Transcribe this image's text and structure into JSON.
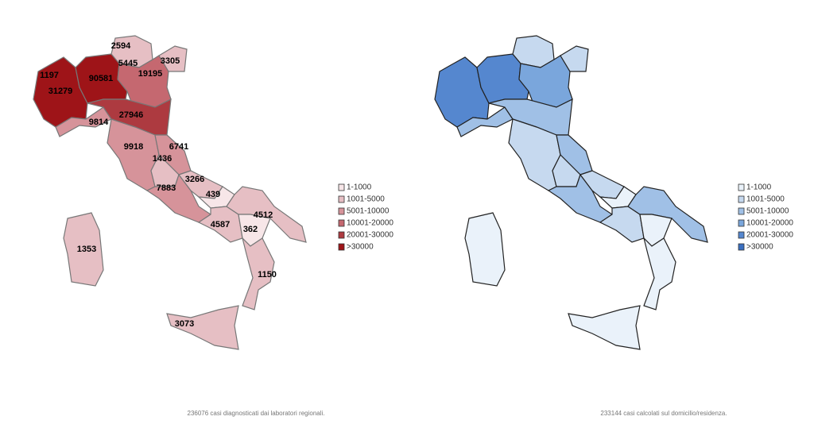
{
  "left_map": {
    "labels": [
      2594,
      5445,
      3305,
      1197,
      90581,
      19195,
      31279,
      27946,
      9814,
      9918,
      6741,
      1436,
      3266,
      7883,
      439,
      4512,
      4587,
      362,
      1353,
      1150,
      3073
    ],
    "legend": [
      {
        "label": "1-1000",
        "color": "#f7e6e8"
      },
      {
        "label": "1001-5000",
        "color": "#e6bfc4"
      },
      {
        "label": "5001-10000",
        "color": "#d6939a"
      },
      {
        "label": "10001-20000",
        "color": "#c56870"
      },
      {
        "label": "20001-30000",
        "color": "#ad3a40"
      },
      {
        "label": ">30000",
        "color": "#9e1418"
      }
    ],
    "caption": "236076 casi diagnosticati dai laboratori regionali."
  },
  "right_map": {
    "legend": [
      {
        "label": "1-1000",
        "color": "#eaf2fa"
      },
      {
        "label": "1001-5000",
        "color": "#c6d9ef"
      },
      {
        "label": "5001-10000",
        "color": "#a0c0e6"
      },
      {
        "label": "10001-20000",
        "color": "#7aa6dc"
      },
      {
        "label": "20001-30000",
        "color": "#5587cf"
      },
      {
        "label": ">30000",
        "color": "#3a6fc0"
      }
    ],
    "caption": "233144 casi calcolati sul domicilio/residenza."
  }
}
